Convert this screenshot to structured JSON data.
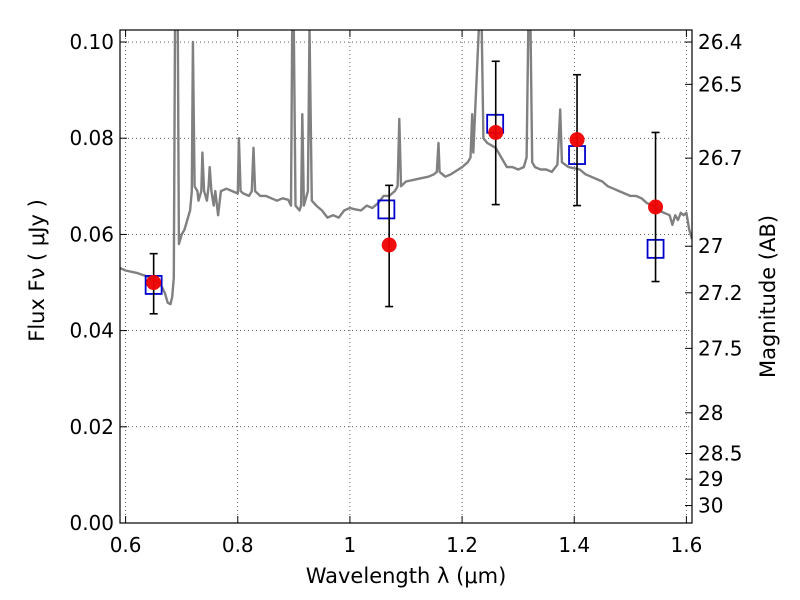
{
  "chart_data": {
    "type": "scatter",
    "xlabel": "Wavelength  λ (μm)",
    "ylabel": "Flux  Fν  ( μJy )",
    "y2label": "Magnitude (AB)",
    "xlim": [
      0.59,
      1.61
    ],
    "ylim": [
      0.0,
      0.1025
    ],
    "grid": true,
    "x_ticks": [
      {
        "value": 0.6,
        "label": "0.6"
      },
      {
        "value": 0.8,
        "label": "0.8"
      },
      {
        "value": 1.0,
        "label": "1"
      },
      {
        "value": 1.2,
        "label": "1.2"
      },
      {
        "value": 1.4,
        "label": "1.4"
      },
      {
        "value": 1.6,
        "label": "1.6"
      }
    ],
    "y_ticks": [
      {
        "value": 0.0,
        "label": "0.00"
      },
      {
        "value": 0.02,
        "label": "0.02"
      },
      {
        "value": 0.04,
        "label": "0.04"
      },
      {
        "value": 0.06,
        "label": "0.06"
      },
      {
        "value": 0.08,
        "label": "0.08"
      },
      {
        "value": 0.1,
        "label": "0.10"
      }
    ],
    "mag_ticks": [
      {
        "mag": 26.4,
        "label": "26.4"
      },
      {
        "mag": 26.5,
        "label": "26.5"
      },
      {
        "mag": 26.7,
        "label": "26.7"
      },
      {
        "mag": 27.0,
        "label": "27"
      },
      {
        "mag": 27.2,
        "label": "27.2"
      },
      {
        "mag": 27.5,
        "label": "27.5"
      },
      {
        "mag": 28.0,
        "label": "28"
      },
      {
        "mag": 28.5,
        "label": "28.5"
      },
      {
        "mag": 29.0,
        "label": "29"
      },
      {
        "mag": 30.0,
        "label": "30"
      }
    ],
    "series": [
      {
        "kind": "line",
        "color": "#808080",
        "points": [
          [
            0.59,
            0.053
          ],
          [
            0.6,
            0.0525
          ],
          [
            0.62,
            0.052
          ],
          [
            0.64,
            0.0512
          ],
          [
            0.65,
            0.0505
          ],
          [
            0.655,
            0.0502
          ],
          [
            0.66,
            0.05
          ],
          [
            0.665,
            0.049
          ],
          [
            0.67,
            0.0478
          ],
          [
            0.675,
            0.0458
          ],
          [
            0.68,
            0.0455
          ],
          [
            0.683,
            0.047
          ],
          [
            0.686,
            0.051
          ],
          [
            0.688,
            0.103
          ],
          [
            0.693,
            0.103
          ],
          [
            0.695,
            0.058
          ],
          [
            0.7,
            0.06
          ],
          [
            0.705,
            0.061
          ],
          [
            0.71,
            0.063
          ],
          [
            0.715,
            0.065
          ],
          [
            0.718,
            0.069
          ],
          [
            0.72,
            0.1
          ],
          [
            0.723,
            0.07
          ],
          [
            0.728,
            0.069
          ],
          [
            0.73,
            0.067
          ],
          [
            0.735,
            0.069
          ],
          [
            0.737,
            0.077
          ],
          [
            0.74,
            0.069
          ],
          [
            0.745,
            0.067
          ],
          [
            0.748,
            0.07
          ],
          [
            0.75,
            0.074
          ],
          [
            0.753,
            0.069
          ],
          [
            0.757,
            0.066
          ],
          [
            0.76,
            0.069
          ],
          [
            0.765,
            0.064
          ],
          [
            0.77,
            0.069
          ],
          [
            0.78,
            0.0695
          ],
          [
            0.79,
            0.069
          ],
          [
            0.8,
            0.0685
          ],
          [
            0.802,
            0.08
          ],
          [
            0.805,
            0.069
          ],
          [
            0.81,
            0.0685
          ],
          [
            0.82,
            0.068
          ],
          [
            0.825,
            0.069
          ],
          [
            0.828,
            0.078
          ],
          [
            0.831,
            0.069
          ],
          [
            0.84,
            0.068
          ],
          [
            0.85,
            0.068
          ],
          [
            0.86,
            0.0675
          ],
          [
            0.87,
            0.067
          ],
          [
            0.88,
            0.0675
          ],
          [
            0.89,
            0.0672
          ],
          [
            0.895,
            0.066
          ],
          [
            0.897,
            0.103
          ],
          [
            0.9,
            0.103
          ],
          [
            0.903,
            0.066
          ],
          [
            0.91,
            0.065
          ],
          [
            0.913,
            0.066
          ],
          [
            0.915,
            0.085
          ],
          [
            0.918,
            0.066
          ],
          [
            0.925,
            0.069
          ],
          [
            0.928,
            0.103
          ],
          [
            0.932,
            0.067
          ],
          [
            0.94,
            0.066
          ],
          [
            0.95,
            0.065
          ],
          [
            0.96,
            0.0635
          ],
          [
            0.97,
            0.064
          ],
          [
            0.98,
            0.0635
          ],
          [
            0.99,
            0.065
          ],
          [
            1.0,
            0.0655
          ],
          [
            1.01,
            0.0652
          ],
          [
            1.02,
            0.065
          ],
          [
            1.03,
            0.066
          ],
          [
            1.04,
            0.0655
          ],
          [
            1.05,
            0.0665
          ],
          [
            1.06,
            0.068
          ],
          [
            1.07,
            0.068
          ],
          [
            1.08,
            0.069
          ],
          [
            1.085,
            0.07
          ],
          [
            1.088,
            0.084
          ],
          [
            1.091,
            0.07
          ],
          [
            1.1,
            0.071
          ],
          [
            1.12,
            0.0715
          ],
          [
            1.14,
            0.072
          ],
          [
            1.15,
            0.0725
          ],
          [
            1.155,
            0.073
          ],
          [
            1.158,
            0.079
          ],
          [
            1.16,
            0.073
          ],
          [
            1.17,
            0.072
          ],
          [
            1.18,
            0.0725
          ],
          [
            1.2,
            0.074
          ],
          [
            1.21,
            0.075
          ],
          [
            1.215,
            0.076
          ],
          [
            1.218,
            0.085
          ],
          [
            1.22,
            0.077
          ],
          [
            1.23,
            0.103
          ],
          [
            1.235,
            0.103
          ],
          [
            1.238,
            0.08
          ],
          [
            1.245,
            0.079
          ],
          [
            1.26,
            0.078
          ],
          [
            1.27,
            0.076
          ],
          [
            1.28,
            0.074
          ],
          [
            1.29,
            0.074
          ],
          [
            1.3,
            0.0735
          ],
          [
            1.31,
            0.074
          ],
          [
            1.315,
            0.076
          ],
          [
            1.318,
            0.103
          ],
          [
            1.322,
            0.103
          ],
          [
            1.325,
            0.075
          ],
          [
            1.33,
            0.074
          ],
          [
            1.34,
            0.0735
          ],
          [
            1.35,
            0.0735
          ],
          [
            1.36,
            0.073
          ],
          [
            1.37,
            0.0745
          ],
          [
            1.375,
            0.086
          ],
          [
            1.378,
            0.075
          ],
          [
            1.39,
            0.074
          ],
          [
            1.41,
            0.0735
          ],
          [
            1.42,
            0.0725
          ],
          [
            1.43,
            0.072
          ],
          [
            1.44,
            0.0715
          ],
          [
            1.45,
            0.071
          ],
          [
            1.46,
            0.07
          ],
          [
            1.47,
            0.0695
          ],
          [
            1.48,
            0.069
          ],
          [
            1.49,
            0.0685
          ],
          [
            1.5,
            0.068
          ],
          [
            1.51,
            0.068
          ],
          [
            1.52,
            0.0675
          ],
          [
            1.53,
            0.0665
          ],
          [
            1.54,
            0.066
          ],
          [
            1.55,
            0.065
          ],
          [
            1.56,
            0.0645
          ],
          [
            1.57,
            0.064
          ],
          [
            1.575,
            0.062
          ],
          [
            1.58,
            0.064
          ],
          [
            1.585,
            0.063
          ],
          [
            1.59,
            0.0645
          ],
          [
            1.595,
            0.064
          ],
          [
            1.6,
            0.0645
          ],
          [
            1.605,
            0.061
          ],
          [
            1.61,
            0.059
          ]
        ]
      },
      {
        "kind": "squares",
        "color": "#0000cc",
        "points": [
          [
            0.65,
            0.0495
          ],
          [
            1.065,
            0.0652
          ],
          [
            1.259,
            0.083
          ],
          [
            1.405,
            0.0765
          ],
          [
            1.545,
            0.057
          ]
        ]
      },
      {
        "kind": "points-with-errorbars",
        "color": "#ee0000",
        "errcolor": "#000000",
        "points": [
          {
            "x": 0.65,
            "y": 0.05,
            "lo": 0.0435,
            "hi": 0.056
          },
          {
            "x": 1.07,
            "y": 0.0578,
            "lo": 0.045,
            "hi": 0.0702
          },
          {
            "x": 1.26,
            "y": 0.0812,
            "lo": 0.0662,
            "hi": 0.096
          },
          {
            "x": 1.405,
            "y": 0.0797,
            "lo": 0.066,
            "hi": 0.0932
          },
          {
            "x": 1.545,
            "y": 0.0657,
            "lo": 0.0502,
            "hi": 0.0812
          }
        ]
      }
    ]
  }
}
